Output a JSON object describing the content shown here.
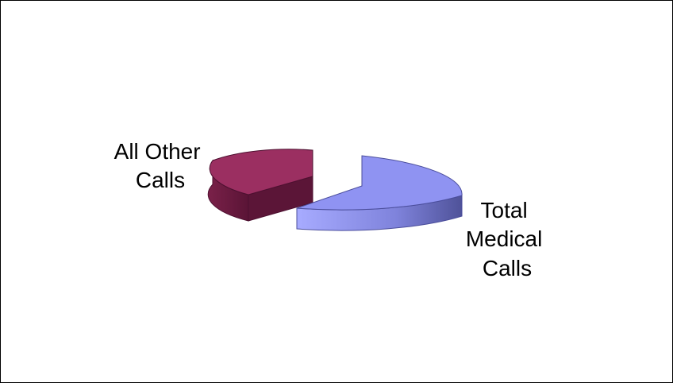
{
  "chart_data": {
    "type": "pie",
    "style": "3d-exploded",
    "title": "",
    "slices": [
      {
        "label_lines": [
          "All Other",
          "Calls"
        ],
        "value": 35,
        "top_color": "#9b2f61",
        "side_color": "#6e1c45",
        "edge_color": "#4d1030"
      },
      {
        "label_lines": [
          "Total",
          "Medical",
          "Calls"
        ],
        "value": 65,
        "top_color": "#8f93f2",
        "side_color": "#6f72c8",
        "edge_color": "#4b4e9c"
      }
    ],
    "legend": "none"
  }
}
